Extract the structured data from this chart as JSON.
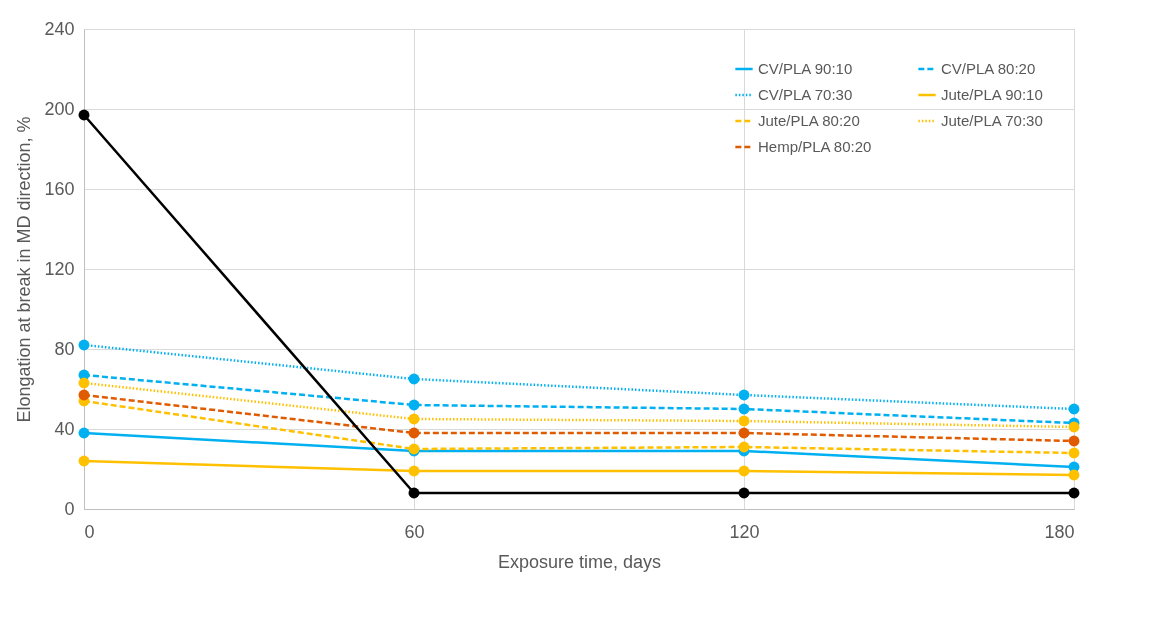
{
  "chart_data": {
    "type": "line",
    "xlabel": "Exposure time, days",
    "ylabel": "Elongation at break in MD direction, %",
    "x": [
      0,
      60,
      120,
      180
    ],
    "xlim": [
      0,
      180
    ],
    "xticks": [
      0,
      60,
      120,
      180
    ],
    "ylim": [
      0,
      240
    ],
    "yticks": [
      0,
      40,
      80,
      120,
      160,
      200,
      240
    ],
    "grid": true,
    "legend": "top right",
    "marker": "circle",
    "series": [
      {
        "name": "CV/PLA 90:10",
        "color": "#00b0f0",
        "line_style": "solid",
        "values": [
          38,
          29,
          29,
          21
        ]
      },
      {
        "name": "CV/PLA 80:20",
        "color": "#00b0f0",
        "line_style": "dashed",
        "values": [
          67,
          52,
          50,
          43
        ]
      },
      {
        "name": "CV/PLA 70:30",
        "color": "#00b0f0",
        "line_style": "dotted",
        "values": [
          82,
          65,
          57,
          50
        ]
      },
      {
        "name": "Jute/PLA 90:10",
        "color": "#ffc000",
        "line_style": "solid",
        "values": [
          24,
          19,
          19,
          17
        ]
      },
      {
        "name": "Jute/PLA 80:20",
        "color": "#ffc000",
        "line_style": "dashed",
        "values": [
          54,
          30,
          31,
          28
        ]
      },
      {
        "name": "Jute/PLA 70:30",
        "color": "#ffc000",
        "line_style": "dotted",
        "values": [
          63,
          45,
          44,
          41
        ]
      },
      {
        "name": "Hemp/PLA 80:20",
        "color": "#e05a00",
        "line_style": "dashed",
        "values": [
          57,
          38,
          38,
          34
        ]
      },
      {
        "color": "#000000",
        "line_style": "solid",
        "values": [
          197,
          8,
          8,
          8
        ]
      }
    ]
  }
}
